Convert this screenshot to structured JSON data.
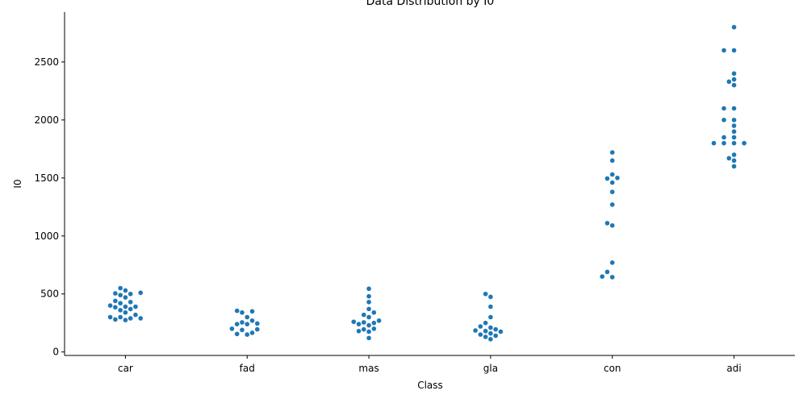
{
  "chart_data": {
    "type": "scatter",
    "title": "Data Distribution by I0",
    "xlabel": "Class",
    "ylabel": "I0",
    "categories": [
      "car",
      "fad",
      "mas",
      "gla",
      "con",
      "adi"
    ],
    "ylim": [
      -30,
      2930
    ],
    "yticks": [
      0,
      500,
      1000,
      1500,
      2000,
      2500
    ],
    "grid": false,
    "legend": "none",
    "point_color": "#1f77b4",
    "series": [
      {
        "category": "car",
        "values": [
          550,
          530,
          510,
          505,
          500,
          490,
          470,
          440,
          430,
          420,
          400,
          390,
          390,
          385,
          370,
          360,
          340,
          320,
          300,
          300,
          290,
          290,
          280,
          275
        ]
      },
      {
        "category": "fad",
        "values": [
          355,
          350,
          340,
          300,
          270,
          255,
          245,
          240,
          240,
          200,
          195,
          190,
          165,
          155,
          150
        ]
      },
      {
        "category": "mas",
        "values": [
          545,
          480,
          430,
          370,
          340,
          320,
          300,
          270,
          260,
          255,
          250,
          240,
          230,
          200,
          195,
          180,
          175,
          120
        ]
      },
      {
        "category": "gla",
        "values": [
          500,
          475,
          390,
          300,
          250,
          220,
          210,
          195,
          185,
          180,
          175,
          160,
          150,
          140,
          130,
          110
        ]
      },
      {
        "category": "con",
        "values": [
          1720,
          1650,
          1530,
          1500,
          1495,
          1460,
          1380,
          1270,
          1110,
          1090,
          770,
          690,
          650,
          645
        ]
      },
      {
        "category": "adi",
        "values": [
          2800,
          2600,
          2600,
          2400,
          2350,
          2330,
          2300,
          2100,
          2100,
          2000,
          2000,
          1950,
          1900,
          1850,
          1850,
          1800,
          1800,
          1800,
          1800,
          1700,
          1670,
          1650,
          1600
        ]
      }
    ]
  }
}
